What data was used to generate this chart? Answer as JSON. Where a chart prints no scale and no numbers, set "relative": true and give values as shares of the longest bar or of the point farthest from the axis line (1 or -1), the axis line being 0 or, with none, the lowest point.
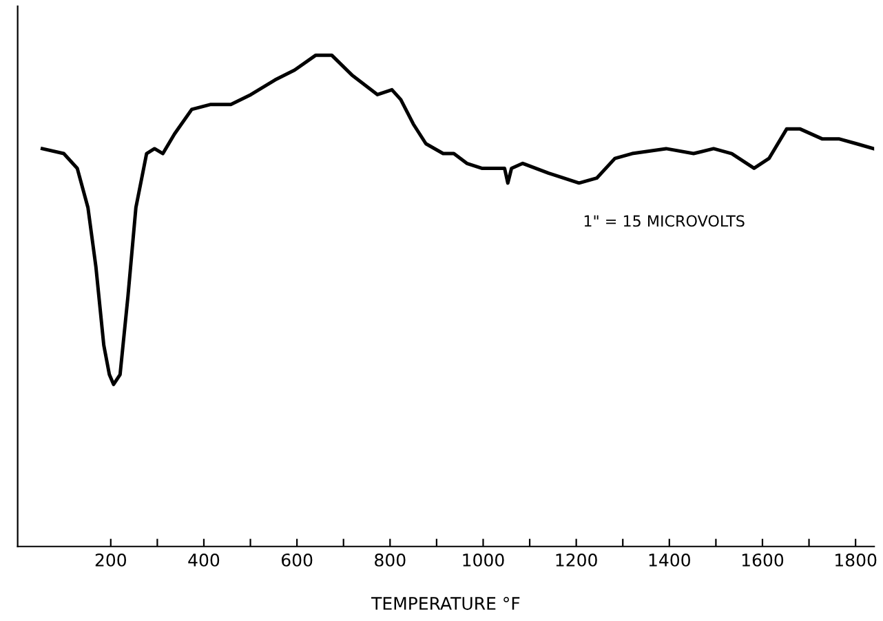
{
  "chart_data": {
    "type": "line",
    "relative": true,
    "xlabel": "TEMPERATURE °F",
    "annotations": [
      "1\" = 15 MICROVOLTS"
    ],
    "xlim": [
      0,
      1840
    ],
    "xticks": [
      200,
      {
        "value": 300,
        "label": null
      },
      400,
      {
        "value": 500,
        "label": null
      },
      600,
      {
        "value": 700,
        "label": null
      },
      800,
      {
        "value": 900,
        "label": null
      },
      1000,
      {
        "value": 1100,
        "label": null
      },
      1200,
      {
        "value": 1300,
        "label": null
      },
      1400,
      {
        "value": 1500,
        "label": null
      },
      1600,
      {
        "value": 1700,
        "label": null
      },
      1800
    ],
    "grid": false,
    "marker": "none",
    "line_style": "solid",
    "tick_labels": "x",
    "series": [
      {
        "color": "#000000",
        "x": [
          53,
          99,
          128,
          151,
          168,
          185,
          197,
          206,
          220,
          237,
          254,
          277,
          294,
          312,
          337,
          374,
          415,
          458,
          501,
          553,
          595,
          640,
          675,
          718,
          773,
          804,
          823,
          850,
          877,
          914,
          937,
          965,
          997,
          1026,
          1046,
          1053,
          1061,
          1085,
          1141,
          1206,
          1244,
          1283,
          1320,
          1393,
          1452,
          1495,
          1534,
          1582,
          1614,
          1652,
          1681,
          1728,
          1764,
          1802,
          1839
        ],
        "values": [
          0.81,
          0.8,
          0.77,
          0.69,
          0.57,
          0.41,
          0.35,
          0.33,
          0.35,
          0.51,
          0.69,
          0.8,
          0.81,
          0.8,
          0.84,
          0.89,
          0.9,
          0.9,
          0.92,
          0.95,
          0.97,
          1.0,
          1.0,
          0.96,
          0.92,
          0.93,
          0.91,
          0.86,
          0.82,
          0.8,
          0.8,
          0.78,
          0.77,
          0.77,
          0.77,
          0.74,
          0.77,
          0.78,
          0.76,
          0.74,
          0.75,
          0.79,
          0.8,
          0.81,
          0.8,
          0.81,
          0.8,
          0.77,
          0.79,
          0.85,
          0.85,
          0.83,
          0.83,
          0.82,
          0.81
        ]
      }
    ]
  }
}
